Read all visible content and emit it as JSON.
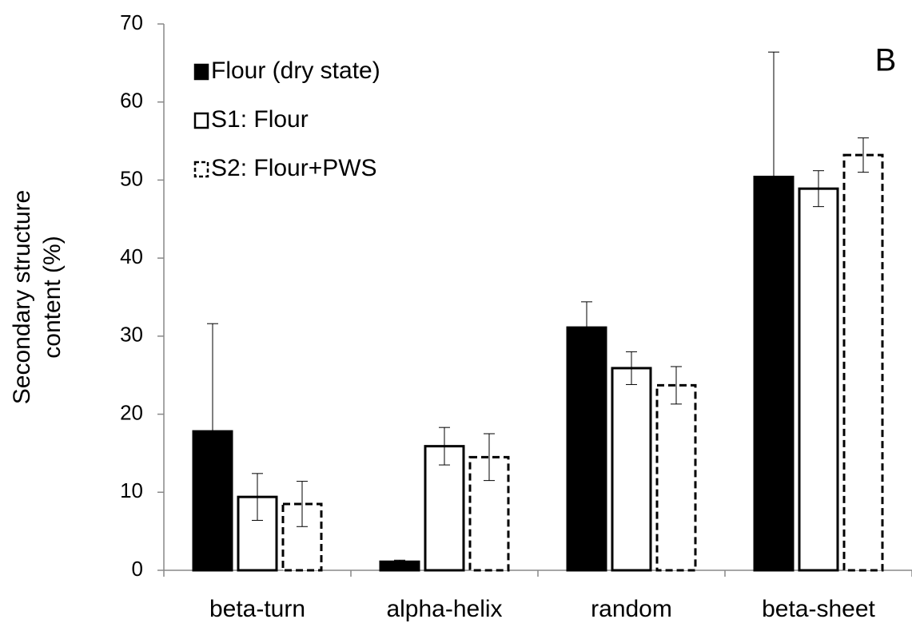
{
  "chart_data": {
    "type": "bar",
    "ylabel": [
      "Secondary structure",
      "content (%)"
    ],
    "annotation": "B",
    "categories": [
      "beta-turn",
      "alpha-helix",
      "random",
      "beta-sheet"
    ],
    "series": [
      {
        "name": "Flour (dry state)",
        "color": "#000000",
        "dashed": false,
        "values": [
          17.8,
          1.1,
          31.1,
          50.4
        ],
        "errors": [
          13.8,
          0.2,
          3.3,
          16.0
        ]
      },
      {
        "name": "S1: Flour",
        "color": "#ffffff",
        "dashed": false,
        "values": [
          9.4,
          15.9,
          25.9,
          48.9
        ],
        "errors": [
          3.0,
          2.4,
          2.1,
          2.3
        ]
      },
      {
        "name": "S2: Flour+PWS",
        "color": "#ffffff",
        "dashed": true,
        "values": [
          8.5,
          14.5,
          23.7,
          53.2
        ],
        "errors": [
          2.9,
          3.0,
          2.4,
          2.2
        ]
      }
    ],
    "ylim": [
      0,
      70
    ],
    "yticks": [
      0,
      10,
      20,
      30,
      40,
      50,
      60,
      70
    ],
    "grid": false,
    "legend": "top-left"
  }
}
